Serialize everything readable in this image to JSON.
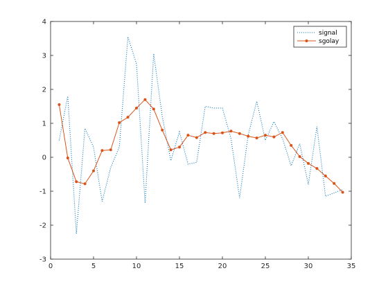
{
  "chart_data": {
    "type": "line",
    "title": "",
    "xlabel": "",
    "ylabel": "",
    "xlim": [
      0,
      35
    ],
    "ylim": [
      -3,
      4
    ],
    "xticks": [
      0,
      5,
      10,
      15,
      20,
      25,
      30,
      35
    ],
    "yticks": [
      -3,
      -2,
      -1,
      0,
      1,
      2,
      3,
      4
    ],
    "grid": false,
    "legend_position": "top-right",
    "series": [
      {
        "name": "signal",
        "style": "dotted",
        "color": "#0072bd",
        "marker": "none",
        "x": [
          1,
          2,
          3,
          4,
          5,
          6,
          7,
          8,
          9,
          10,
          11,
          12,
          13,
          14,
          15,
          16,
          17,
          18,
          19,
          20,
          21,
          22,
          23,
          24,
          25,
          26,
          27,
          28,
          29,
          30,
          31,
          32,
          33,
          34
        ],
        "y": [
          0.5,
          1.8,
          -2.25,
          0.85,
          0.3,
          -1.3,
          -0.3,
          0.3,
          3.55,
          2.75,
          -1.35,
          3.05,
          1.2,
          -0.1,
          0.75,
          -0.2,
          -0.15,
          1.5,
          1.45,
          1.45,
          0.55,
          -1.2,
          0.65,
          1.65,
          0.5,
          1.05,
          0.55,
          -0.25,
          0.4,
          -0.8,
          0.9,
          -1.15,
          -1.05,
          -0.95
        ]
      },
      {
        "name": "sgolay",
        "style": "solid",
        "color": "#d95319",
        "marker": "dot",
        "x": [
          1,
          2,
          3,
          4,
          5,
          6,
          7,
          8,
          9,
          10,
          11,
          12,
          13,
          14,
          15,
          16,
          17,
          18,
          19,
          20,
          21,
          22,
          23,
          24,
          25,
          26,
          27,
          28,
          29,
          30,
          31,
          32,
          33,
          34
        ],
        "y": [
          1.55,
          -0.02,
          -0.72,
          -0.78,
          -0.4,
          0.2,
          0.22,
          1.02,
          1.18,
          1.45,
          1.7,
          1.42,
          0.8,
          0.22,
          0.3,
          0.65,
          0.58,
          0.73,
          0.7,
          0.72,
          0.77,
          0.7,
          0.62,
          0.57,
          0.65,
          0.6,
          0.73,
          0.35,
          0.02,
          -0.18,
          -0.33,
          -0.55,
          -0.77,
          -1.03
        ]
      }
    ]
  }
}
